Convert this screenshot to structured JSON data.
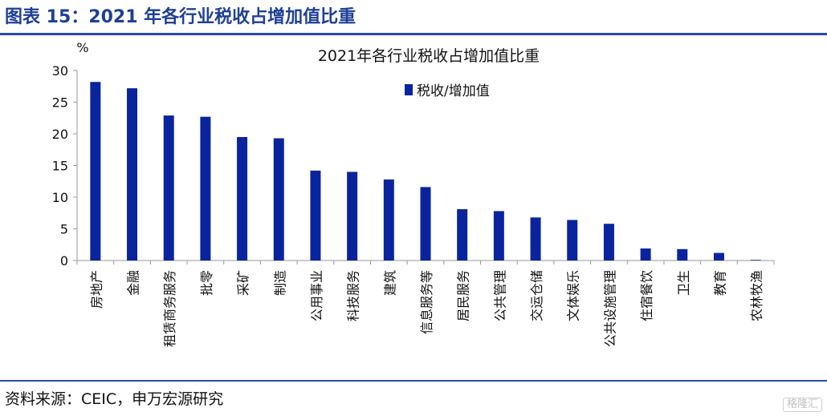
{
  "figure_title": "图表 15：2021 年各行业税收占增加值比重",
  "source_note": "资料来源：CEIC，申万宏源研究",
  "watermark": "格隆汇",
  "colors": {
    "bar": "#0a249e",
    "rule": "#2a4aa8",
    "title": "#1f3f96"
  },
  "chart_data": {
    "type": "bar",
    "title": "2021年各行业税收占增加值比重",
    "ylabel": "%",
    "xlabel": "",
    "ylim": [
      0,
      30
    ],
    "yticks": [
      0,
      5,
      10,
      15,
      20,
      25,
      30
    ],
    "grid": false,
    "legend_position": "top-right",
    "categories": [
      "房地产",
      "金融",
      "租赁商务服务",
      "批零",
      "采矿",
      "制造",
      "公用事业",
      "科技服务",
      "建筑",
      "信息服务等",
      "居民服务",
      "公共管理",
      "交运仓储",
      "文体娱乐",
      "公共设施管理",
      "住宿餐饮",
      "卫生",
      "教育",
      "农林牧渔"
    ],
    "series": [
      {
        "name": "税收/增加值",
        "values": [
          28.2,
          27.2,
          22.9,
          22.7,
          19.5,
          19.3,
          14.2,
          14.0,
          12.8,
          11.6,
          8.1,
          7.8,
          6.8,
          6.4,
          5.8,
          1.9,
          1.8,
          1.2,
          0.1
        ]
      }
    ]
  }
}
